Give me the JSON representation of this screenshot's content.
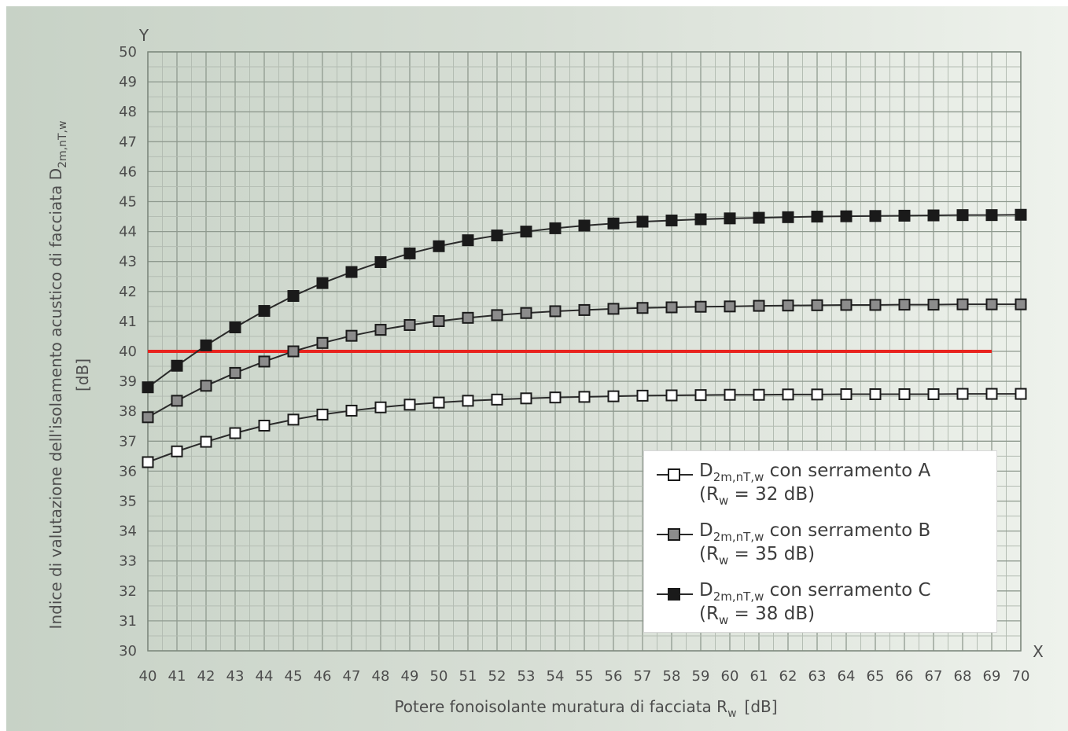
{
  "chart_data": {
    "type": "line",
    "y_axis_letter": "Y",
    "x_axis_letter": "X",
    "ylabel": "Indice di valutazione dell'isolamento acustico di facciata D",
    "ylabel_sub": "2m,nT,w",
    "ylabel_unit": "[dB]",
    "xlabel": "Potere fonoisolante muratura di facciata R",
    "xlabel_sub": "w",
    "xlabel_unit": "[dB]",
    "xlim": [
      40,
      70
    ],
    "ylim": [
      30,
      50
    ],
    "grid": true,
    "legend_position": "bottom-right",
    "x": [
      40,
      41,
      42,
      43,
      44,
      45,
      46,
      47,
      48,
      49,
      50,
      51,
      52,
      53,
      54,
      55,
      56,
      57,
      58,
      59,
      60,
      61,
      62,
      63,
      64,
      65,
      66,
      67,
      68,
      69,
      70
    ],
    "series": [
      {
        "name": "D2m,nT,w con serramento A",
        "name_main": "D",
        "name_sub": "2m,nT,w",
        "name_rest": " con serramento A",
        "note_main": "(R",
        "note_sub": "w",
        "note_rest": " = 32 dB)",
        "fill": "#ffffff",
        "values": [
          36.3,
          36.66,
          36.98,
          37.27,
          37.52,
          37.72,
          37.89,
          38.02,
          38.13,
          38.22,
          38.29,
          38.35,
          38.39,
          38.43,
          38.46,
          38.48,
          38.5,
          38.52,
          38.53,
          38.54,
          38.55,
          38.55,
          38.56,
          38.56,
          38.57,
          38.57,
          38.57,
          38.57,
          38.58,
          38.58,
          38.58
        ]
      },
      {
        "name": "D2m,nT,w con serramento B",
        "name_main": "D",
        "name_sub": "2m,nT,w",
        "name_rest": " con serramento B",
        "note_main": "(R",
        "note_sub": "w",
        "note_rest": " = 35 dB)",
        "fill": "#8c8c8c",
        "values": [
          37.8,
          38.35,
          38.85,
          39.28,
          39.66,
          40.0,
          40.28,
          40.52,
          40.72,
          40.88,
          41.01,
          41.12,
          41.21,
          41.28,
          41.34,
          41.38,
          41.42,
          41.45,
          41.47,
          41.49,
          41.5,
          41.52,
          41.53,
          41.54,
          41.55,
          41.55,
          41.56,
          41.56,
          41.57,
          41.57,
          41.57
        ]
      },
      {
        "name": "D2m,nT,w con serramento C",
        "name_main": "D",
        "name_sub": "2m,nT,w",
        "name_rest": " con serramento C",
        "note_main": "(R",
        "note_sub": "w",
        "note_rest": " = 38 dB)",
        "fill": "#1a1a1a",
        "values": [
          38.8,
          39.52,
          40.2,
          40.8,
          41.35,
          41.85,
          42.28,
          42.65,
          42.98,
          43.27,
          43.51,
          43.71,
          43.87,
          44.0,
          44.11,
          44.2,
          44.27,
          44.33,
          44.37,
          44.41,
          44.44,
          44.46,
          44.48,
          44.5,
          44.51,
          44.52,
          44.53,
          44.54,
          44.55,
          44.55,
          44.56
        ]
      }
    ],
    "reference_line": {
      "y": 40,
      "x_start": 40,
      "x_end": 69,
      "color": "#e8231e"
    }
  }
}
